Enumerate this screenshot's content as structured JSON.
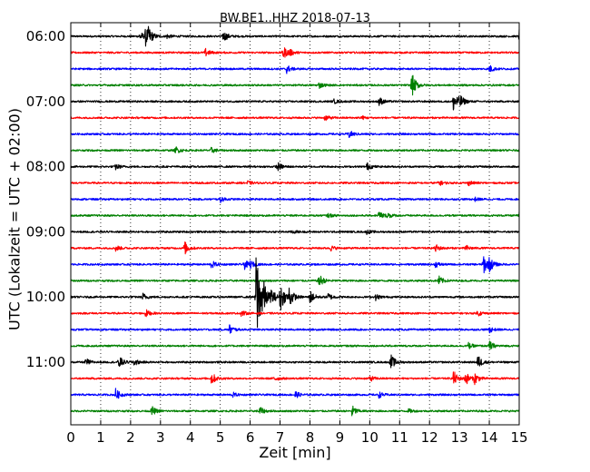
{
  "chart_data": {
    "type": "line",
    "title": "BW.BE1..HHZ 2018-07-13",
    "xlabel": "Zeit  [min]",
    "ylabel": "UTC (Lokalzeit = UTC + 02:00)",
    "xlim": [
      0,
      15
    ],
    "x_ticks": [
      0,
      1,
      2,
      3,
      4,
      5,
      6,
      7,
      8,
      9,
      10,
      11,
      12,
      13,
      14,
      15
    ],
    "x_tick_labels": [
      "0",
      "1",
      "2",
      "3",
      "4",
      "5",
      "6",
      "7",
      "8",
      "9",
      "10",
      "11",
      "12",
      "13",
      "14",
      "15"
    ],
    "y_tick_labels": [
      "06:00",
      "07:00",
      "08:00",
      "09:00",
      "10:00",
      "11:00"
    ],
    "y_tick_rows": [
      0,
      4,
      8,
      12,
      16,
      20
    ],
    "vertical_grid": "dotted",
    "colors": [
      "#000000",
      "#ff0000",
      "#0000ff",
      "#008000"
    ],
    "series": [
      {
        "start": "06:00",
        "events": [
          [
            2.3,
            0.1
          ],
          [
            2.5,
            0.18
          ],
          [
            2.6,
            0.12
          ],
          [
            3.2,
            0.05
          ],
          [
            5.1,
            0.12
          ],
          [
            15.0,
            0.14
          ]
        ]
      },
      {
        "start": "06:15",
        "events": [
          [
            4.5,
            0.08
          ],
          [
            7.1,
            0.14
          ],
          [
            7.3,
            0.06
          ]
        ]
      },
      {
        "start": "06:30",
        "events": [
          [
            7.2,
            0.1
          ],
          [
            14.0,
            0.08
          ]
        ]
      },
      {
        "start": "06:45",
        "events": [
          [
            8.3,
            0.06
          ],
          [
            11.4,
            0.26
          ]
        ]
      },
      {
        "start": "07:00",
        "events": [
          [
            8.8,
            0.04
          ],
          [
            10.3,
            0.1
          ],
          [
            12.8,
            0.24
          ],
          [
            13.0,
            0.12
          ]
        ]
      },
      {
        "start": "07:15",
        "events": [
          [
            8.5,
            0.06
          ],
          [
            9.7,
            0.04
          ]
        ]
      },
      {
        "start": "07:30",
        "events": [
          [
            9.3,
            0.08
          ]
        ]
      },
      {
        "start": "07:45",
        "events": [
          [
            3.5,
            0.08
          ],
          [
            4.7,
            0.06
          ]
        ]
      },
      {
        "start": "08:00",
        "events": [
          [
            1.5,
            0.06
          ],
          [
            6.9,
            0.1
          ],
          [
            9.9,
            0.08
          ]
        ]
      },
      {
        "start": "08:15",
        "events": [
          [
            5.9,
            0.04
          ],
          [
            12.3,
            0.06
          ],
          [
            13.3,
            0.05
          ]
        ]
      },
      {
        "start": "08:30",
        "events": [
          [
            5.0,
            0.06
          ],
          [
            13.5,
            0.04
          ]
        ]
      },
      {
        "start": "08:45",
        "events": [
          [
            8.6,
            0.04
          ],
          [
            10.3,
            0.1
          ],
          [
            10.6,
            0.06
          ],
          [
            15.0,
            0.06
          ]
        ]
      },
      {
        "start": "09:00",
        "events": [
          [
            7.4,
            0.04
          ],
          [
            9.9,
            0.04
          ]
        ]
      },
      {
        "start": "09:15",
        "events": [
          [
            1.5,
            0.06
          ],
          [
            3.8,
            0.14
          ],
          [
            8.7,
            0.05
          ],
          [
            12.2,
            0.08
          ],
          [
            13.2,
            0.06
          ]
        ]
      },
      {
        "start": "09:30",
        "events": [
          [
            4.7,
            0.08
          ],
          [
            5.8,
            0.1
          ],
          [
            6.0,
            0.06
          ],
          [
            12.2,
            0.06
          ],
          [
            13.8,
            0.22
          ],
          [
            14.0,
            0.12
          ]
        ]
      },
      {
        "start": "09:45",
        "events": [
          [
            8.3,
            0.14
          ],
          [
            12.3,
            0.1
          ]
        ]
      },
      {
        "start": "10:00",
        "events": [
          [
            2.4,
            0.08
          ],
          [
            6.2,
            1.2
          ],
          [
            6.4,
            0.28
          ],
          [
            6.7,
            0.16
          ],
          [
            7.0,
            0.32
          ],
          [
            7.3,
            0.22
          ],
          [
            8.0,
            0.14
          ],
          [
            8.6,
            0.08
          ],
          [
            10.2,
            0.06
          ]
        ]
      },
      {
        "start": "10:15",
        "events": [
          [
            2.5,
            0.08
          ],
          [
            5.7,
            0.06
          ],
          [
            13.6,
            0.06
          ]
        ]
      },
      {
        "start": "10:30",
        "events": [
          [
            5.3,
            0.1
          ],
          [
            14.0,
            0.06
          ]
        ]
      },
      {
        "start": "10:45",
        "events": [
          [
            13.3,
            0.06
          ],
          [
            14.0,
            0.1
          ]
        ]
      },
      {
        "start": "11:00",
        "events": [
          [
            0.5,
            0.08
          ],
          [
            1.6,
            0.14
          ],
          [
            2.1,
            0.08
          ],
          [
            10.7,
            0.16
          ],
          [
            13.6,
            0.16
          ]
        ]
      },
      {
        "start": "11:15",
        "events": [
          [
            4.7,
            0.14
          ],
          [
            6.8,
            0.06
          ],
          [
            10.0,
            0.06
          ],
          [
            12.8,
            0.16
          ],
          [
            13.2,
            0.14
          ],
          [
            13.5,
            0.12
          ]
        ]
      },
      {
        "start": "11:30",
        "events": [
          [
            1.5,
            0.12
          ],
          [
            5.4,
            0.05
          ],
          [
            7.5,
            0.08
          ],
          [
            10.3,
            0.06
          ]
        ]
      },
      {
        "start": "11:45",
        "events": [
          [
            2.7,
            0.1
          ],
          [
            6.3,
            0.1
          ],
          [
            9.4,
            0.12
          ],
          [
            11.3,
            0.04
          ]
        ]
      }
    ]
  }
}
